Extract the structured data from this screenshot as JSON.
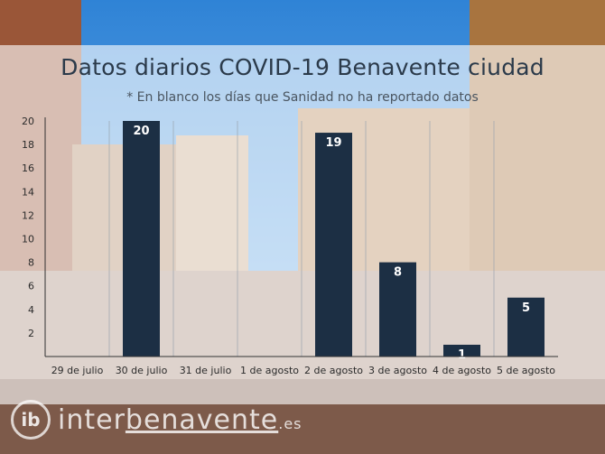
{
  "title": "Datos diarios COVID-19 Benavente ciudad",
  "subtitle": "* En blanco los días que Sanidad no ha reportado datos",
  "logo": {
    "badge": "ib",
    "name_a": "inter",
    "name_b": "benavente",
    "tld": ".es"
  },
  "colors": {
    "bar": "#1c2f44",
    "bar_label": "#ffffff",
    "axis": "#333333",
    "grid": "#9aa4ae"
  },
  "chart_data": {
    "type": "bar",
    "categories": [
      "29 de julio",
      "30 de julio",
      "31 de julio",
      "1 de agosto",
      "2 de agosto",
      "3 de agosto",
      "4 de agosto",
      "5 de agosto"
    ],
    "values": [
      null,
      20,
      null,
      null,
      19,
      8,
      1,
      5
    ],
    "ylim": [
      0,
      20
    ],
    "yticks": [
      2,
      4,
      6,
      8,
      10,
      12,
      14,
      16,
      18,
      20
    ],
    "grid": "vertical",
    "legend": "none"
  }
}
